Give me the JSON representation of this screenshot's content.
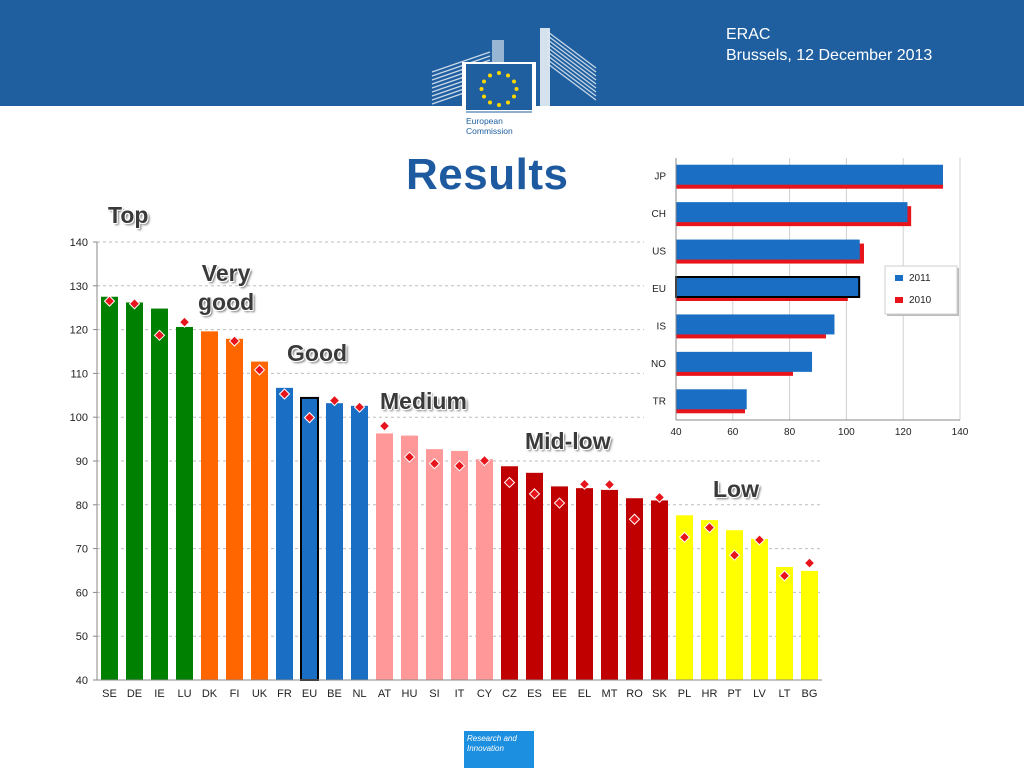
{
  "header": {
    "org_line": "ERAC",
    "date_line": "Brussels, 12 December 2013"
  },
  "logo": {
    "name_line1": "European",
    "name_line2": "Commission"
  },
  "title": "Results",
  "category_labels": {
    "top": "Top",
    "very_good_line1": "Very",
    "very_good_line2": "good",
    "good": "Good",
    "medium": "Medium",
    "mid_low": "Mid-low",
    "low": "Low"
  },
  "footer": {
    "line1": "Research and",
    "line2": "Innovation"
  },
  "colors": {
    "top": "#008000",
    "very_good": "#ff6600",
    "good": "#1a6fc4",
    "medium": "#ff9999",
    "mid_low": "#c00000",
    "low": "#ffff00",
    "marker": "#e8141b",
    "brand_blue": "#1f5fa0"
  },
  "chart_data": [
    {
      "type": "bar",
      "title": "",
      "xlabel": "",
      "ylabel": "",
      "ylim": [
        40,
        140
      ],
      "yticks": [
        40,
        50,
        60,
        70,
        80,
        90,
        100,
        110,
        120,
        130,
        140
      ],
      "grid": "horizontal dashed",
      "categories": [
        "SE",
        "DE",
        "IE",
        "LU",
        "DK",
        "FI",
        "UK",
        "FR",
        "EU",
        "BE",
        "NL",
        "AT",
        "HU",
        "SI",
        "IT",
        "CY",
        "CZ",
        "ES",
        "EE",
        "EL",
        "MT",
        "RO",
        "SK",
        "PL",
        "HR",
        "PT",
        "LV",
        "LT",
        "BG"
      ],
      "series": [
        {
          "values": [
            127.5,
            126.2,
            124.8,
            120.6,
            119.6,
            117.9,
            112.7,
            106.7,
            104.4,
            103.2,
            102.6,
            96.3,
            95.8,
            92.7,
            92.3,
            90.4,
            88.8,
            87.3,
            84.2,
            83.8,
            83.4,
            81.5,
            81.0,
            77.6,
            76.5,
            74.2,
            72.2,
            65.8,
            64.9
          ]
        },
        {
          "marker": "diamond",
          "values": [
            126.5,
            125.9,
            118.7,
            121.7,
            null,
            117.4,
            110.8,
            105.3,
            99.9,
            103.8,
            102.3,
            98.0,
            90.9,
            89.4,
            88.9,
            90.1,
            85.1,
            82.5,
            80.4,
            84.7,
            84.6,
            76.7,
            81.7,
            72.6,
            74.8,
            68.5,
            72.0,
            63.8,
            66.7
          ]
        }
      ],
      "bar_groups": [
        "top",
        "top",
        "top",
        "top",
        "very_good",
        "very_good",
        "very_good",
        "good",
        "good",
        "good",
        "good",
        "medium",
        "medium",
        "medium",
        "medium",
        "medium",
        "mid_low",
        "mid_low",
        "mid_low",
        "mid_low",
        "mid_low",
        "mid_low",
        "mid_low",
        "low",
        "low",
        "low",
        "low",
        "low",
        "low"
      ],
      "highlighted_category": "EU"
    },
    {
      "type": "bar",
      "orientation": "horizontal",
      "title": "",
      "xlim": [
        40,
        140
      ],
      "xticks": [
        40,
        60,
        80,
        100,
        120,
        140
      ],
      "grid": "vertical",
      "legend": "right",
      "categories": [
        "JP",
        "CH",
        "US",
        "EU",
        "IS",
        "NO",
        "TR"
      ],
      "series": [
        {
          "name": "2011",
          "color": "#1a6fc4",
          "values": [
            134.0,
            121.5,
            104.7,
            104.5,
            95.8,
            87.9,
            64.9
          ]
        },
        {
          "name": "2010",
          "color": "#e8141b",
          "values": [
            134.0,
            122.8,
            106.2,
            100.5,
            92.8,
            81.2,
            64.3
          ]
        }
      ],
      "highlighted_category": "EU"
    }
  ]
}
